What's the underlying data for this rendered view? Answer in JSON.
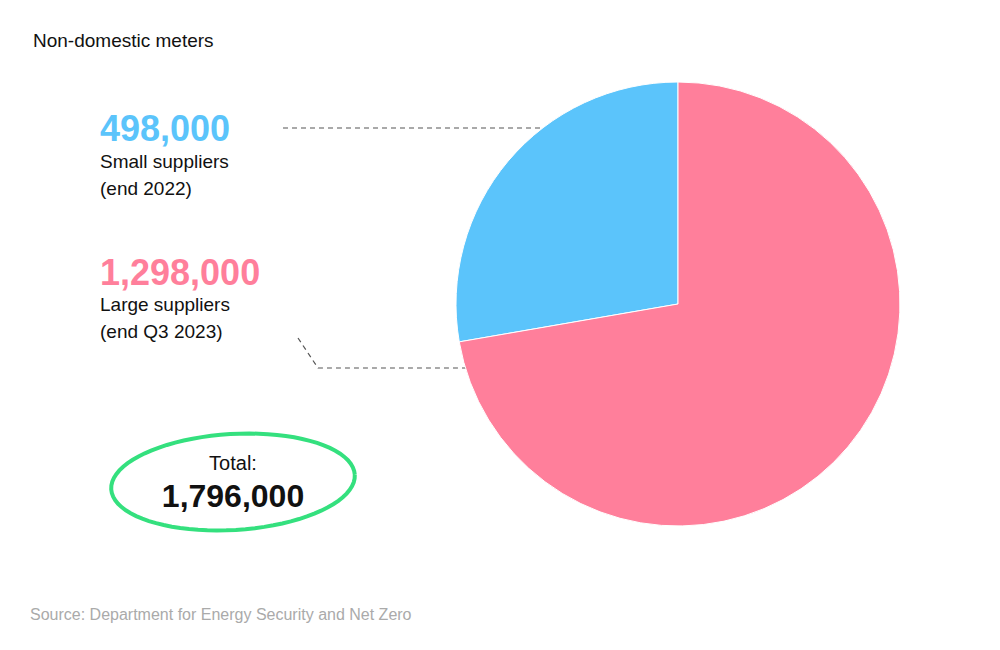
{
  "chart_data": {
    "type": "pie",
    "title": "Non-domestic meters",
    "categories": [
      "Small suppliers\n(end 2022)",
      "Large suppliers\n(end Q3 2023)"
    ],
    "values": [
      498000,
      1298000
    ],
    "value_labels": [
      "498,000",
      "1,298,000"
    ],
    "colors": [
      "#5bc4fb",
      "#ff7f9b"
    ],
    "data_labels": true,
    "total": {
      "label": "Total:",
      "value": 1796000,
      "value_label": "1,796,000"
    },
    "source": "Source: Department for Energy Security and Net Zero"
  }
}
